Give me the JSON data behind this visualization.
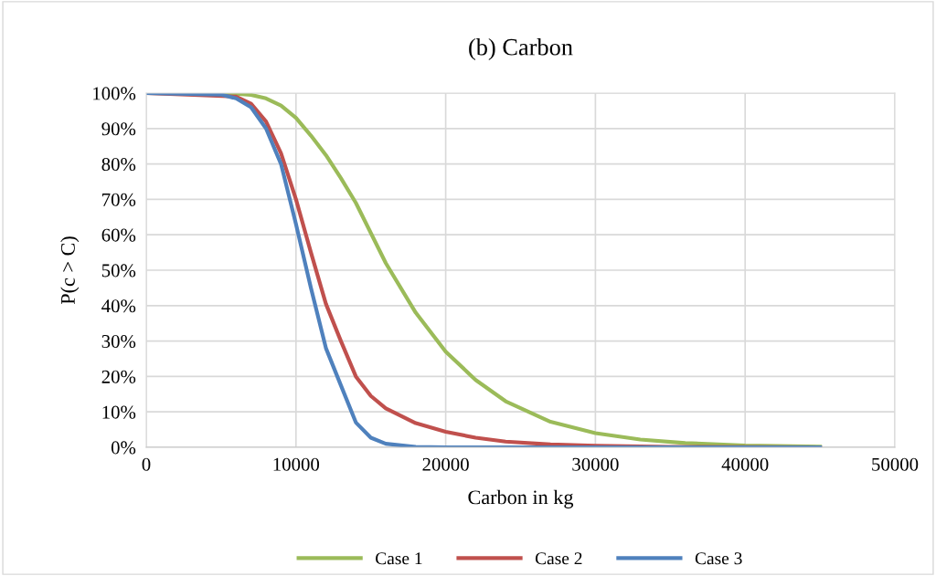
{
  "chart_data": {
    "type": "line",
    "title": "(b) Carbon",
    "xlabel": "Carbon in kg",
    "ylabel": "P(c > C)",
    "series": [
      {
        "name": "Case 1",
        "color": "#9bbb59",
        "x": [
          0,
          5000,
          6000,
          7000,
          8000,
          9000,
          10000,
          11000,
          12000,
          13000,
          14000,
          15000,
          16000,
          18000,
          20000,
          22000,
          24000,
          27000,
          30000,
          33000,
          36000,
          40000,
          45000
        ],
        "values": [
          100,
          99.9,
          99.8,
          99.5,
          98.5,
          96.5,
          93,
          88,
          82.5,
          76,
          69,
          60.5,
          52,
          38,
          27,
          19,
          13,
          7.2,
          4,
          2.2,
          1.2,
          0.5,
          0.2
        ]
      },
      {
        "name": "Case 2",
        "color": "#c0504d",
        "x": [
          0,
          6000,
          7000,
          8000,
          9000,
          10000,
          11000,
          12000,
          13000,
          14000,
          15000,
          16000,
          18000,
          20000,
          22000,
          24000,
          27000,
          30000,
          35000,
          45000
        ],
        "values": [
          100,
          99,
          97,
          92,
          83,
          70,
          55,
          40.5,
          30,
          20,
          14.5,
          11,
          6.8,
          4.4,
          2.7,
          1.6,
          0.8,
          0.4,
          0.1,
          0
        ]
      },
      {
        "name": "Case 3",
        "color": "#4f81bd",
        "x": [
          0,
          5000,
          6000,
          7000,
          8000,
          9000,
          10000,
          11000,
          12000,
          13000,
          14000,
          15000,
          16000,
          18000,
          20000,
          45000
        ],
        "values": [
          100,
          99.6,
          98.5,
          96,
          90,
          80,
          63,
          45,
          28,
          17.5,
          7,
          2.7,
          1,
          0.1,
          0,
          0
        ]
      }
    ],
    "xlim": [
      0,
      50000
    ],
    "xticks": [
      0,
      10000,
      20000,
      30000,
      40000,
      50000
    ],
    "ylim": [
      0,
      100
    ],
    "yticks": [
      {
        "value": 0,
        "label": "0%"
      },
      {
        "value": 10,
        "label": "10%"
      },
      {
        "value": 20,
        "label": "20%"
      },
      {
        "value": 30,
        "label": "30%"
      },
      {
        "value": 40,
        "label": "40%"
      },
      {
        "value": 50,
        "label": "50%"
      },
      {
        "value": 60,
        "label": "60%"
      },
      {
        "value": 70,
        "label": "70%"
      },
      {
        "value": 80,
        "label": "80%"
      },
      {
        "value": 90,
        "label": "90%"
      },
      {
        "value": 100,
        "label": "100%"
      }
    ],
    "grid": true,
    "legend": "bottom",
    "marker": "none",
    "line_style": "solid"
  }
}
